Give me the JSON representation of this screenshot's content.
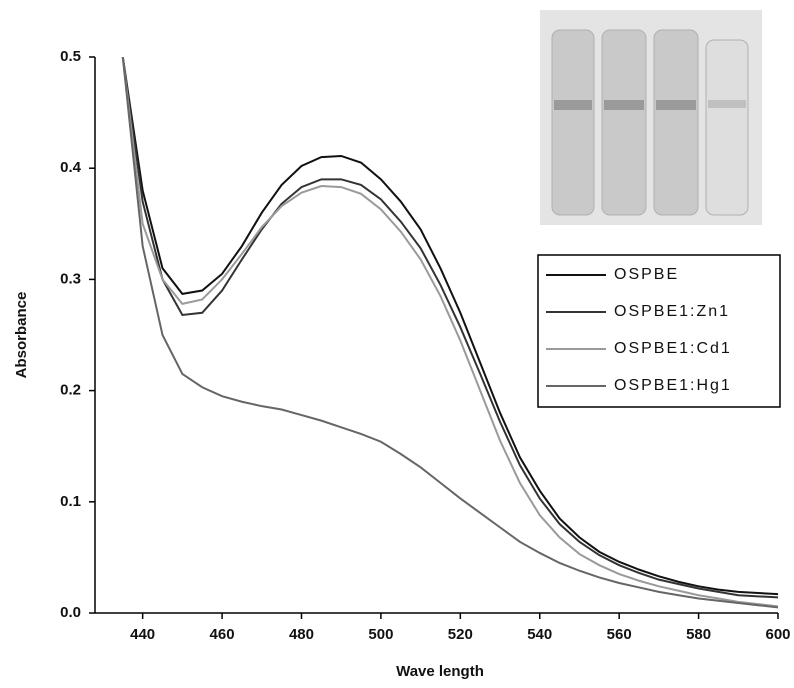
{
  "chart_data": {
    "type": "line",
    "x_label": "Wave length",
    "y_label": "Absorbance",
    "x": [
      435,
      440,
      445,
      450,
      455,
      460,
      465,
      470,
      475,
      480,
      485,
      490,
      495,
      500,
      505,
      510,
      515,
      520,
      525,
      530,
      535,
      540,
      545,
      550,
      555,
      560,
      565,
      570,
      575,
      580,
      585,
      590,
      595,
      600
    ],
    "series": [
      {
        "name": "OSPBE",
        "color": "#111111",
        "values": [
          0.5,
          0.38,
          0.31,
          0.287,
          0.29,
          0.305,
          0.33,
          0.36,
          0.385,
          0.402,
          0.41,
          0.411,
          0.405,
          0.39,
          0.37,
          0.345,
          0.31,
          0.27,
          0.225,
          0.18,
          0.14,
          0.11,
          0.085,
          0.068,
          0.055,
          0.046,
          0.039,
          0.033,
          0.028,
          0.024,
          0.021,
          0.019,
          0.018,
          0.017
        ]
      },
      {
        "name": "OSPBE1:Zn1",
        "color": "#333333",
        "values": [
          0.5,
          0.37,
          0.3,
          0.268,
          0.27,
          0.29,
          0.318,
          0.345,
          0.368,
          0.383,
          0.39,
          0.39,
          0.385,
          0.372,
          0.352,
          0.328,
          0.295,
          0.257,
          0.215,
          0.172,
          0.133,
          0.103,
          0.08,
          0.064,
          0.052,
          0.043,
          0.036,
          0.03,
          0.026,
          0.022,
          0.019,
          0.016,
          0.015,
          0.014
        ]
      },
      {
        "name": "OSPBE1:Cd1",
        "color": "#9a9a9a",
        "values": [
          0.5,
          0.35,
          0.3,
          0.278,
          0.282,
          0.3,
          0.323,
          0.347,
          0.366,
          0.378,
          0.384,
          0.383,
          0.377,
          0.363,
          0.343,
          0.318,
          0.285,
          0.245,
          0.2,
          0.155,
          0.117,
          0.088,
          0.068,
          0.053,
          0.043,
          0.035,
          0.029,
          0.024,
          0.02,
          0.016,
          0.013,
          0.01,
          0.008,
          0.006
        ]
      },
      {
        "name": "OSPBE1:Hg1",
        "color": "#666666",
        "values": [
          0.5,
          0.33,
          0.25,
          0.215,
          0.203,
          0.195,
          0.19,
          0.186,
          0.183,
          0.178,
          0.173,
          0.167,
          0.161,
          0.154,
          0.143,
          0.131,
          0.117,
          0.103,
          0.09,
          0.077,
          0.064,
          0.054,
          0.045,
          0.038,
          0.032,
          0.027,
          0.023,
          0.019,
          0.016,
          0.013,
          0.011,
          0.009,
          0.007,
          0.005
        ]
      }
    ],
    "xlim": [
      428,
      600
    ],
    "ylim": [
      0,
      0.5
    ],
    "xticks": [
      440,
      460,
      480,
      500,
      520,
      540,
      560,
      580,
      600
    ],
    "yticks": [
      {
        "value": 0,
        "label": "0.0"
      },
      0.1,
      0.2,
      0.3,
      0.4,
      0.5
    ],
    "legend": "right"
  }
}
